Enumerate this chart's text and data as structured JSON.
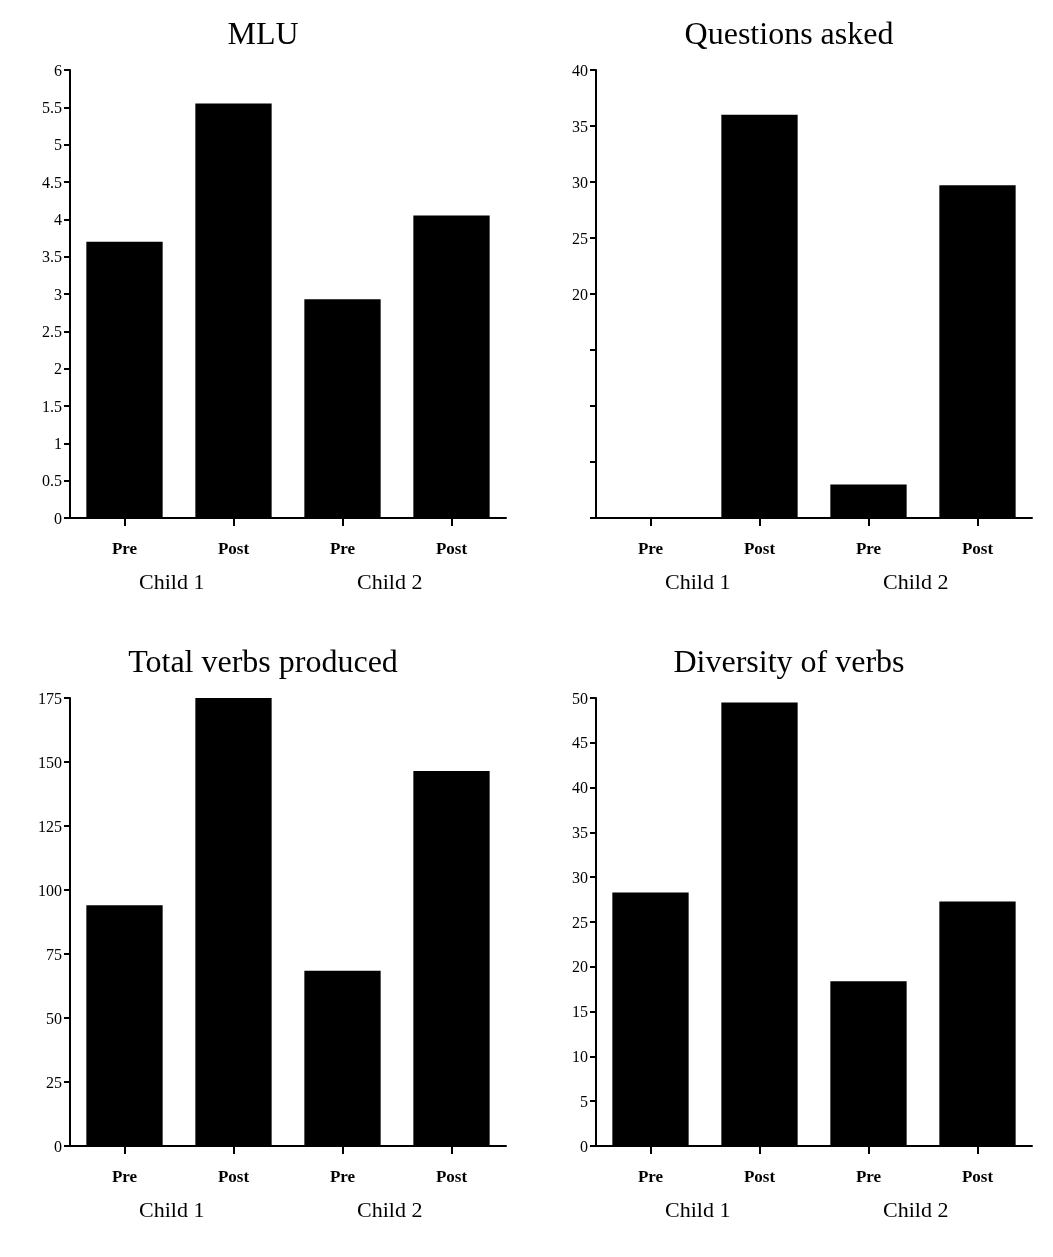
{
  "chart_data": [
    {
      "type": "bar",
      "title": "MLU",
      "categories": [
        "Pre",
        "Post",
        "Pre",
        "Post"
      ],
      "values": [
        3.7,
        5.55,
        2.93,
        4.05
      ],
      "color": "#000000",
      "ylim": [
        0,
        6
      ],
      "yticks": [
        0,
        0.5,
        1,
        1.5,
        2,
        2.5,
        3,
        3.5,
        4,
        4.5,
        5,
        5.5,
        6
      ],
      "grid": false,
      "annotations": [
        "Child 1",
        "Child 2"
      ]
    },
    {
      "type": "bar",
      "title": "Questions asked",
      "categories": [
        "Pre",
        "Post",
        "Pre",
        "Post"
      ],
      "values": [
        0,
        36,
        3,
        29.7
      ],
      "color": "#000000",
      "ylim": [
        0,
        40
      ],
      "yticks": [
        {
          "value": 0,
          "label": null
        },
        {
          "value": 5,
          "label": null
        },
        {
          "value": 10,
          "label": null
        },
        {
          "value": 15,
          "label": null
        },
        20,
        25,
        30,
        35,
        40
      ],
      "grid": false,
      "annotations": [
        "Child 1",
        "Child 2"
      ]
    },
    {
      "type": "bar",
      "title": "Total verbs produced",
      "categories": [
        "Pre",
        "Post",
        "Pre",
        "Post"
      ],
      "values": [
        94,
        175,
        68.5,
        146.5
      ],
      "color": "#000000",
      "ylim": [
        0,
        175
      ],
      "yticks": [
        0,
        25,
        50,
        75,
        100,
        125,
        150,
        175
      ],
      "grid": false,
      "annotations": [
        "Child 1",
        "Child 2"
      ]
    },
    {
      "type": "bar",
      "title": "Diversity of verbs",
      "categories": [
        "Pre",
        "Post",
        "Pre",
        "Post"
      ],
      "values": [
        28.3,
        49.5,
        18.4,
        27.3
      ],
      "color": "#000000",
      "ylim": [
        0,
        50
      ],
      "yticks": [
        0,
        5,
        10,
        15,
        20,
        25,
        30,
        35,
        40,
        45,
        50
      ],
      "grid": false,
      "annotations": [
        "Child 1",
        "Child 2"
      ]
    }
  ]
}
